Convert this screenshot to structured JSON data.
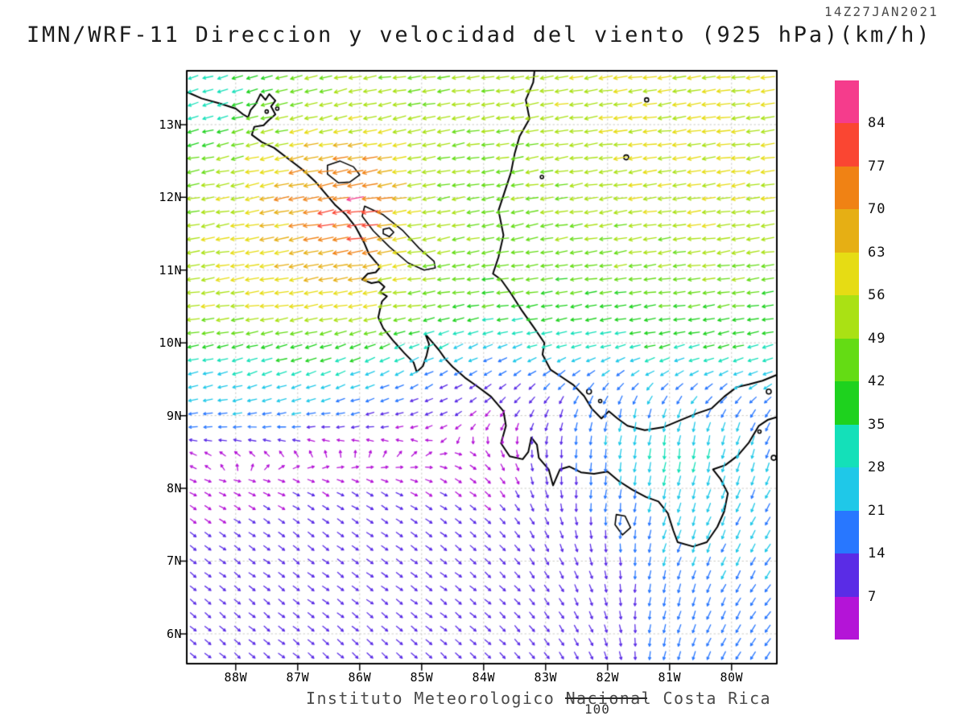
{
  "chart_data": {
    "type": "vector_field",
    "title": "IMN/WRF-11 Direccion y velocidad del viento (925 hPa)(km/h)",
    "timestamp": "14Z27JAN2021",
    "model": "IMN/WRF-11",
    "variable": "Direccion y velocidad del viento",
    "level": "925 hPa",
    "units": "km/h",
    "credit": "Instituto Meteorologico Nacional Costa Rica",
    "reference_vector_label": "100",
    "lon_range": [
      -88.79,
      -79.27
    ],
    "lat_range": [
      5.59,
      13.74
    ],
    "x_axis": {
      "tick_labels": [
        "88W",
        "87W",
        "86W",
        "85W",
        "84W",
        "83W",
        "82W",
        "81W",
        "80W"
      ],
      "tick_lons": [
        -88,
        -87,
        -86,
        -85,
        -84,
        -83,
        -82,
        -81,
        -80
      ]
    },
    "y_axis": {
      "tick_labels": [
        "13N",
        "12N",
        "11N",
        "10N",
        "9N",
        "8N",
        "7N",
        "6N"
      ],
      "tick_lats": [
        13,
        12,
        11,
        10,
        9,
        8,
        7,
        6
      ]
    },
    "colorbar": {
      "labels_top_to_bottom": [
        "84",
        "77",
        "70",
        "63",
        "56",
        "49",
        "42",
        "35",
        "28",
        "21",
        "14",
        "7"
      ],
      "thresholds_low_to_high": [
        7,
        14,
        21,
        28,
        35,
        42,
        49,
        56,
        63,
        70,
        77,
        84
      ],
      "segment_colors_low_to_high": [
        "#b414d7",
        "#5a2ce6",
        "#2877ff",
        "#1fc8e8",
        "#14e0b9",
        "#1ed21e",
        "#64dc14",
        "#aae114",
        "#e6dc14",
        "#e6af14",
        "#f08214",
        "#fa4632",
        "#f53c8c"
      ]
    },
    "wind_grid": {
      "units": "km/h",
      "lons": [
        -89,
        -88,
        -87,
        -86,
        -85,
        -84,
        -83,
        -82,
        -81,
        -80,
        -79
      ],
      "lats": [
        14,
        13.5,
        13,
        12.5,
        12,
        11.5,
        11,
        10.5,
        10,
        9.5,
        9,
        8.5,
        8,
        7.5,
        7,
        6.5,
        6,
        5.5
      ],
      "u": [
        [
          -30,
          -34,
          -44,
          -48,
          -46,
          -48,
          -52,
          -55,
          -56,
          -58,
          -60
        ],
        [
          -28,
          -33,
          -47,
          -50,
          -48,
          -50,
          -53,
          -55,
          -56,
          -57,
          -58
        ],
        [
          -30,
          -37,
          -52,
          -55,
          -50,
          -48,
          -52,
          -55,
          -56,
          -56,
          -56
        ],
        [
          -40,
          -50,
          -64,
          -70,
          -52,
          -46,
          -50,
          -54,
          -56,
          -56,
          -54
        ],
        [
          -45,
          -55,
          -70,
          -82,
          -50,
          -45,
          -48,
          -52,
          -55,
          -56,
          -54
        ],
        [
          -48,
          -56,
          -68,
          -82,
          -52,
          -45,
          -46,
          -50,
          -52,
          -52,
          -50
        ],
        [
          -50,
          -56,
          -62,
          -66,
          -50,
          -44,
          -44,
          -46,
          -48,
          -48,
          -46
        ],
        [
          -52,
          -56,
          -58,
          -58,
          -46,
          -40,
          -38,
          -40,
          -42,
          -42,
          -40
        ],
        [
          -36,
          -38,
          -40,
          -38,
          -30,
          -25,
          -28,
          -32,
          -36,
          -36,
          -34
        ],
        [
          -24,
          -26,
          -28,
          -24,
          -16,
          -10,
          -12,
          -14,
          -18,
          -20,
          -20
        ],
        [
          -20,
          -20,
          -20,
          -14,
          -8,
          -4,
          -4,
          -4,
          -6,
          -8,
          -10
        ],
        [
          -6,
          -4,
          -2,
          0,
          2,
          2,
          0,
          -2,
          -4,
          -6,
          -8
        ],
        [
          4,
          5,
          6,
          6,
          6,
          5,
          2,
          -2,
          -6,
          -8,
          -10
        ],
        [
          5,
          6,
          7,
          7,
          7,
          6,
          4,
          0,
          -6,
          -9,
          -11
        ],
        [
          6,
          7,
          8,
          8,
          8,
          7,
          5,
          2,
          -6,
          -9,
          -12
        ],
        [
          6,
          7,
          8,
          8,
          8,
          7,
          6,
          3,
          -5,
          -9,
          -12
        ],
        [
          6,
          7,
          8,
          8,
          8,
          7,
          6,
          4,
          -4,
          -9,
          -12
        ],
        [
          6,
          7,
          8,
          8,
          8,
          7,
          6,
          4,
          -4,
          -8,
          -12
        ]
      ],
      "v": [
        [
          -6,
          -8,
          -10,
          -8,
          -6,
          -8,
          -8,
          -8,
          -8,
          -8,
          -8
        ],
        [
          -8,
          -10,
          -12,
          -10,
          -8,
          -8,
          -8,
          -8,
          -8,
          -8,
          -8
        ],
        [
          -8,
          -10,
          -12,
          -12,
          -10,
          -8,
          -8,
          -8,
          -8,
          -8,
          -8
        ],
        [
          -8,
          -10,
          -13,
          -13,
          -10,
          -8,
          -8,
          -8,
          -8,
          -8,
          -8
        ],
        [
          -8,
          -10,
          -14,
          -12,
          -10,
          -8,
          -8,
          -8,
          -8,
          -8,
          -8
        ],
        [
          -8,
          -10,
          -12,
          -10,
          -10,
          -8,
          -8,
          -8,
          -8,
          -8,
          -8
        ],
        [
          -8,
          -10,
          -10,
          -10,
          -8,
          -6,
          -6,
          -6,
          -6,
          -6,
          -6
        ],
        [
          -8,
          -8,
          -10,
          -10,
          -8,
          -6,
          -6,
          -6,
          -6,
          -6,
          -6
        ],
        [
          -6,
          -8,
          -10,
          -14,
          -12,
          -10,
          -8,
          -8,
          -8,
          -8,
          -8
        ],
        [
          -6,
          -8,
          -10,
          -10,
          -8,
          -6,
          -10,
          -14,
          -12,
          -10,
          -10
        ],
        [
          -2,
          -2,
          -2,
          -3,
          -3,
          -4,
          -10,
          -20,
          -22,
          -18,
          -14
        ],
        [
          2,
          3,
          3,
          3,
          2,
          -2,
          -10,
          -22,
          -32,
          -24,
          -18
        ],
        [
          -2,
          -2,
          -3,
          -3,
          -3,
          -4,
          -8,
          -18,
          -26,
          -22,
          -16
        ],
        [
          -4,
          -4,
          -5,
          -5,
          -5,
          -5,
          -8,
          -14,
          -22,
          -20,
          -17
        ],
        [
          -5,
          -5,
          -6,
          -6,
          -6,
          -6,
          -8,
          -12,
          -20,
          -19,
          -17
        ],
        [
          -5,
          -6,
          -6,
          -6,
          -6,
          -6,
          -8,
          -10,
          -18,
          -17,
          -16
        ],
        [
          -5,
          -6,
          -6,
          -7,
          -7,
          -6,
          -8,
          -10,
          -16,
          -16,
          -15
        ],
        [
          -5,
          -6,
          -7,
          -7,
          -7,
          -6,
          -8,
          -10,
          -15,
          -15,
          -14
        ]
      ]
    },
    "map": {
      "coastlines": [
        [
          [
            -88.79,
            13.45
          ],
          [
            -88.55,
            13.36
          ],
          [
            -88.25,
            13.29
          ],
          [
            -88.0,
            13.22
          ],
          [
            -87.88,
            13.14
          ],
          [
            -87.8,
            13.1
          ],
          [
            -87.76,
            13.2
          ],
          [
            -87.68,
            13.28
          ],
          [
            -87.6,
            13.42
          ],
          [
            -87.52,
            13.34
          ],
          [
            -87.46,
            13.42
          ],
          [
            -87.36,
            13.33
          ],
          [
            -87.43,
            13.25
          ],
          [
            -87.36,
            13.14
          ],
          [
            -87.47,
            13.06
          ],
          [
            -87.55,
            12.99
          ],
          [
            -87.7,
            12.97
          ],
          [
            -87.74,
            12.86
          ],
          [
            -87.58,
            12.76
          ],
          [
            -87.38,
            12.68
          ],
          [
            -87.15,
            12.53
          ],
          [
            -86.92,
            12.38
          ],
          [
            -86.72,
            12.22
          ],
          [
            -86.53,
            12.03
          ],
          [
            -86.4,
            11.9
          ],
          [
            -86.22,
            11.76
          ],
          [
            -86.07,
            11.6
          ],
          [
            -85.93,
            11.38
          ],
          [
            -85.85,
            11.22
          ],
          [
            -85.72,
            11.09
          ],
          [
            -85.67,
            11.04
          ],
          [
            -85.74,
            10.97
          ],
          [
            -85.87,
            10.95
          ],
          [
            -85.96,
            10.87
          ],
          [
            -85.81,
            10.82
          ],
          [
            -85.69,
            10.84
          ],
          [
            -85.6,
            10.77
          ],
          [
            -85.67,
            10.7
          ],
          [
            -85.56,
            10.64
          ],
          [
            -85.64,
            10.57
          ],
          [
            -85.67,
            10.47
          ],
          [
            -85.7,
            10.35
          ],
          [
            -85.62,
            10.2
          ],
          [
            -85.47,
            10.04
          ],
          [
            -85.28,
            9.86
          ],
          [
            -85.13,
            9.73
          ],
          [
            -85.08,
            9.6
          ],
          [
            -84.98,
            9.68
          ],
          [
            -84.92,
            9.83
          ],
          [
            -84.88,
            9.98
          ],
          [
            -84.94,
            10.12
          ],
          [
            -84.82,
            10.0
          ],
          [
            -84.72,
            9.9
          ],
          [
            -84.62,
            9.78
          ],
          [
            -84.5,
            9.67
          ],
          [
            -84.3,
            9.52
          ],
          [
            -84.1,
            9.4
          ],
          [
            -83.88,
            9.26
          ],
          [
            -83.68,
            9.06
          ],
          [
            -83.64,
            8.86
          ],
          [
            -83.72,
            8.62
          ],
          [
            -83.58,
            8.44
          ],
          [
            -83.37,
            8.4
          ],
          [
            -83.28,
            8.5
          ],
          [
            -83.23,
            8.7
          ],
          [
            -83.14,
            8.6
          ],
          [
            -83.11,
            8.42
          ],
          [
            -82.95,
            8.26
          ],
          [
            -82.88,
            8.04
          ],
          [
            -82.77,
            8.26
          ],
          [
            -82.62,
            8.3
          ],
          [
            -82.43,
            8.22
          ],
          [
            -82.22,
            8.2
          ],
          [
            -82.0,
            8.23
          ],
          [
            -81.82,
            8.1
          ],
          [
            -81.6,
            7.98
          ],
          [
            -81.38,
            7.88
          ],
          [
            -81.18,
            7.82
          ],
          [
            -81.03,
            7.66
          ],
          [
            -80.94,
            7.42
          ],
          [
            -80.87,
            7.26
          ],
          [
            -80.62,
            7.2
          ],
          [
            -80.4,
            7.26
          ],
          [
            -80.23,
            7.47
          ],
          [
            -80.12,
            7.68
          ],
          [
            -80.06,
            7.93
          ],
          [
            -80.18,
            8.13
          ],
          [
            -80.3,
            8.26
          ],
          [
            -80.1,
            8.32
          ],
          [
            -79.9,
            8.45
          ],
          [
            -79.72,
            8.63
          ],
          [
            -79.56,
            8.86
          ],
          [
            -79.42,
            8.94
          ],
          [
            -79.27,
            8.98
          ]
        ],
        [
          [
            -79.27,
            9.56
          ],
          [
            -79.5,
            9.48
          ],
          [
            -79.72,
            9.43
          ],
          [
            -79.92,
            9.39
          ],
          [
            -80.12,
            9.26
          ],
          [
            -80.32,
            9.1
          ],
          [
            -80.56,
            9.03
          ],
          [
            -80.82,
            8.94
          ],
          [
            -81.1,
            8.84
          ],
          [
            -81.4,
            8.8
          ],
          [
            -81.68,
            8.86
          ],
          [
            -81.84,
            8.96
          ],
          [
            -81.98,
            9.06
          ],
          [
            -82.1,
            8.96
          ],
          [
            -82.26,
            9.1
          ],
          [
            -82.38,
            9.27
          ],
          [
            -82.55,
            9.42
          ],
          [
            -82.74,
            9.53
          ],
          [
            -82.92,
            9.63
          ],
          [
            -83.05,
            9.84
          ],
          [
            -83.02,
            10.0
          ],
          [
            -83.18,
            10.2
          ],
          [
            -83.38,
            10.44
          ],
          [
            -83.56,
            10.68
          ],
          [
            -83.72,
            10.87
          ],
          [
            -83.85,
            10.95
          ],
          [
            -83.76,
            11.18
          ],
          [
            -83.68,
            11.48
          ],
          [
            -83.76,
            11.82
          ],
          [
            -83.66,
            12.08
          ],
          [
            -83.56,
            12.34
          ],
          [
            -83.5,
            12.6
          ],
          [
            -83.42,
            12.84
          ],
          [
            -83.26,
            13.08
          ],
          [
            -83.32,
            13.34
          ],
          [
            -83.2,
            13.58
          ],
          [
            -83.18,
            13.74
          ]
        ]
      ],
      "lakes": [
        [
          [
            -85.92,
            11.88
          ],
          [
            -85.62,
            11.76
          ],
          [
            -85.3,
            11.54
          ],
          [
            -85.04,
            11.3
          ],
          [
            -84.8,
            11.12
          ],
          [
            -84.78,
            11.03
          ],
          [
            -84.96,
            11.0
          ],
          [
            -85.22,
            11.1
          ],
          [
            -85.52,
            11.32
          ],
          [
            -85.78,
            11.54
          ],
          [
            -85.96,
            11.74
          ],
          [
            -85.92,
            11.88
          ]
        ],
        [
          [
            -86.52,
            12.44
          ],
          [
            -86.32,
            12.5
          ],
          [
            -86.1,
            12.42
          ],
          [
            -86.0,
            12.31
          ],
          [
            -86.16,
            12.21
          ],
          [
            -86.34,
            12.2
          ],
          [
            -86.52,
            12.32
          ],
          [
            -86.52,
            12.44
          ]
        ],
        [
          [
            -85.62,
            11.56
          ],
          [
            -85.52,
            11.58
          ],
          [
            -85.45,
            11.52
          ],
          [
            -85.52,
            11.46
          ],
          [
            -85.62,
            11.5
          ],
          [
            -85.62,
            11.56
          ]
        ],
        [
          [
            -81.86,
            7.64
          ],
          [
            -81.72,
            7.62
          ],
          [
            -81.63,
            7.46
          ],
          [
            -81.76,
            7.36
          ],
          [
            -81.88,
            7.5
          ],
          [
            -81.86,
            7.64
          ]
        ]
      ],
      "islands": [
        {
          "lon": -81.7,
          "lat": 12.55,
          "r": 3
        },
        {
          "lon": -81.37,
          "lat": 13.34,
          "r": 2.5
        },
        {
          "lon": -83.06,
          "lat": 12.28,
          "r": 2
        },
        {
          "lon": -82.3,
          "lat": 9.33,
          "r": 3
        },
        {
          "lon": -82.12,
          "lat": 9.2,
          "r": 2
        },
        {
          "lon": -79.4,
          "lat": 9.33,
          "r": 3
        },
        {
          "lon": -79.55,
          "lat": 8.78,
          "r": 2
        },
        {
          "lon": -79.32,
          "lat": 8.42,
          "r": 3
        },
        {
          "lon": -87.5,
          "lat": 13.18,
          "r": 2
        },
        {
          "lon": -87.33,
          "lat": 13.22,
          "r": 2
        }
      ]
    }
  }
}
